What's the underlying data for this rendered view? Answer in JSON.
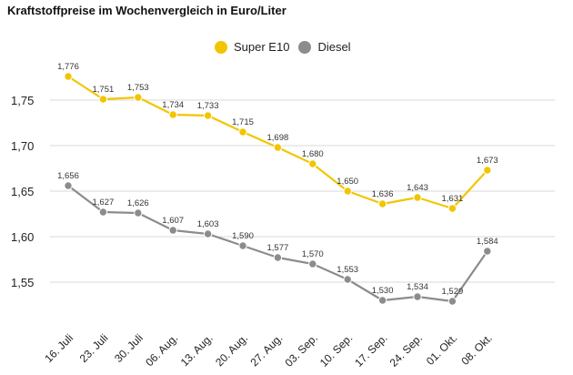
{
  "title": "Kraftstoffpreise im Wochenvergleich in Euro/Liter",
  "colors": {
    "super_e10": "#F2C500",
    "diesel": "#8C8C8C",
    "grid": "#d9d9d9"
  },
  "chart_data": {
    "type": "line",
    "title": "Kraftstoffpreise im Wochenvergleich in Euro/Liter",
    "xlabel": "",
    "ylabel": "",
    "categories": [
      "16. Juli",
      "23. Juli",
      "30. Juli",
      "06. Aug.",
      "13. Aug.",
      "20. Aug.",
      "27. Aug.",
      "03. Sep.",
      "10. Sep.",
      "17. Sep.",
      "24. Sep.",
      "01. Okt.",
      "08. Okt."
    ],
    "yticks": [
      "1,55",
      "1,60",
      "1,65",
      "1,70",
      "1,75"
    ],
    "ytick_values": [
      1.55,
      1.6,
      1.65,
      1.7,
      1.75
    ],
    "ylim": [
      1.505,
      1.79
    ],
    "grid": true,
    "legend_position": "top-center",
    "series": [
      {
        "name": "Super E10",
        "color": "#F2C500",
        "values": [
          1.776,
          1.751,
          1.753,
          1.734,
          1.733,
          1.715,
          1.698,
          1.68,
          1.65,
          1.636,
          1.643,
          1.631,
          1.673
        ],
        "labels": [
          "1,776",
          "1,751",
          "1,753",
          "1,734",
          "1,733",
          "1,715",
          "1,698",
          "1,680",
          "1,650",
          "1,636",
          "1,643",
          "1,631",
          "1,673"
        ]
      },
      {
        "name": "Diesel",
        "color": "#8C8C8C",
        "values": [
          1.656,
          1.627,
          1.626,
          1.607,
          1.603,
          1.59,
          1.577,
          1.57,
          1.553,
          1.53,
          1.534,
          1.529,
          1.584
        ],
        "labels": [
          "1,656",
          "1,627",
          "1,626",
          "1,607",
          "1,603",
          "1,590",
          "1,577",
          "1,570",
          "1,553",
          "1,530",
          "1,534",
          "1,529",
          "1,584"
        ]
      }
    ]
  }
}
